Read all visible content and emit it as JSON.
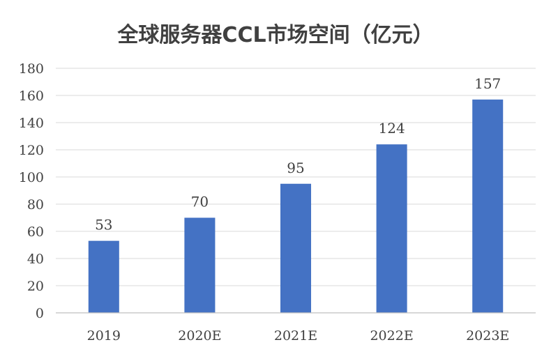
{
  "chart_data": {
    "type": "bar",
    "title": "全球服务器CCL市场空间（亿元）",
    "categories": [
      "2019",
      "2020E",
      "2021E",
      "2022E",
      "2023E"
    ],
    "values": [
      53,
      70,
      95,
      124,
      157
    ],
    "data_labels": [
      "53",
      "70",
      "95",
      "124",
      "157"
    ],
    "ylim": [
      0,
      180
    ],
    "yticks": [
      0,
      20,
      40,
      60,
      80,
      100,
      120,
      140,
      160,
      180
    ],
    "grid": true,
    "legend": "none",
    "bar_color": "#4472c4"
  }
}
